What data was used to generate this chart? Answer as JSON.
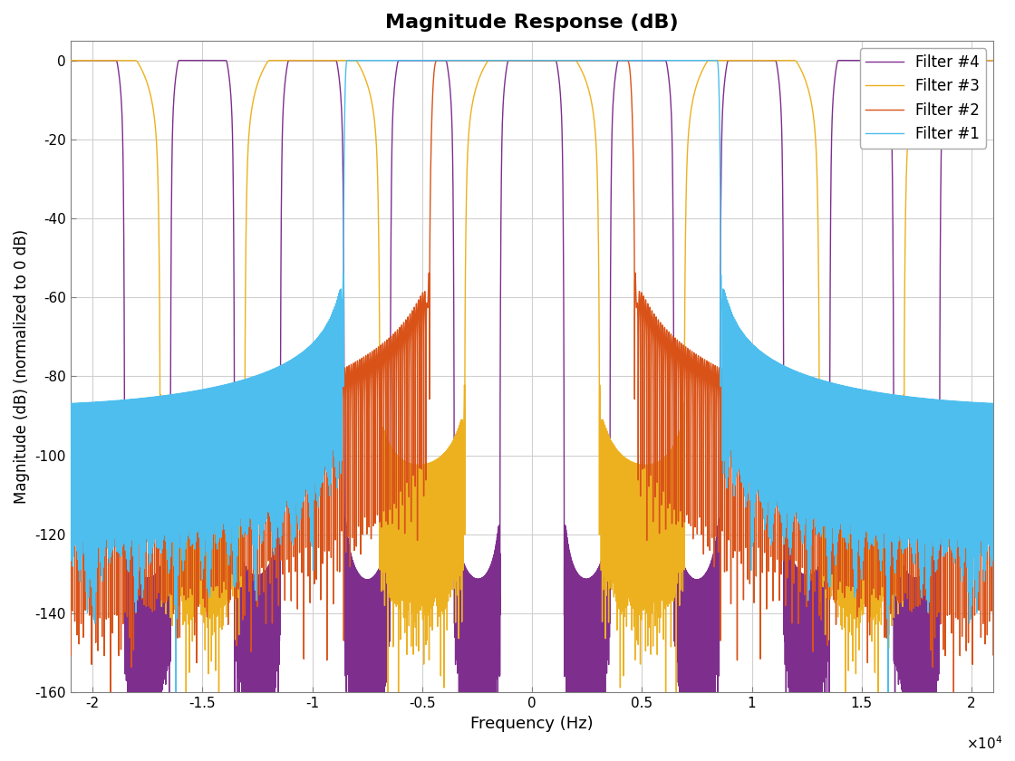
{
  "title": "Magnitude Response (dB)",
  "xlabel": "Frequency (Hz)",
  "ylabel": "Magnitude (dB) (normalized to 0 dB)",
  "xlim": [
    -21000,
    21000
  ],
  "ylim": [
    -160,
    5
  ],
  "yticks": [
    0,
    -20,
    -40,
    -60,
    -80,
    -100,
    -120,
    -140,
    -160
  ],
  "xticks": [
    -20000,
    -15000,
    -10000,
    -5000,
    0,
    5000,
    10000,
    15000,
    20000
  ],
  "xticklabels": [
    "-2",
    "-1.5",
    "-1",
    "-0.5",
    "0",
    "0.5",
    "1",
    "1.5",
    "2"
  ],
  "colors": {
    "filter1": "#4DBEEE",
    "filter2": "#D95319",
    "filter3": "#EDB120",
    "filter4": "#7E2F8E"
  },
  "legend_labels": [
    "Filter #1",
    "Filter #2",
    "Filter #3",
    "Filter #4"
  ],
  "background_color": "#FFFFFF",
  "grid_color": "#D0D0D0"
}
